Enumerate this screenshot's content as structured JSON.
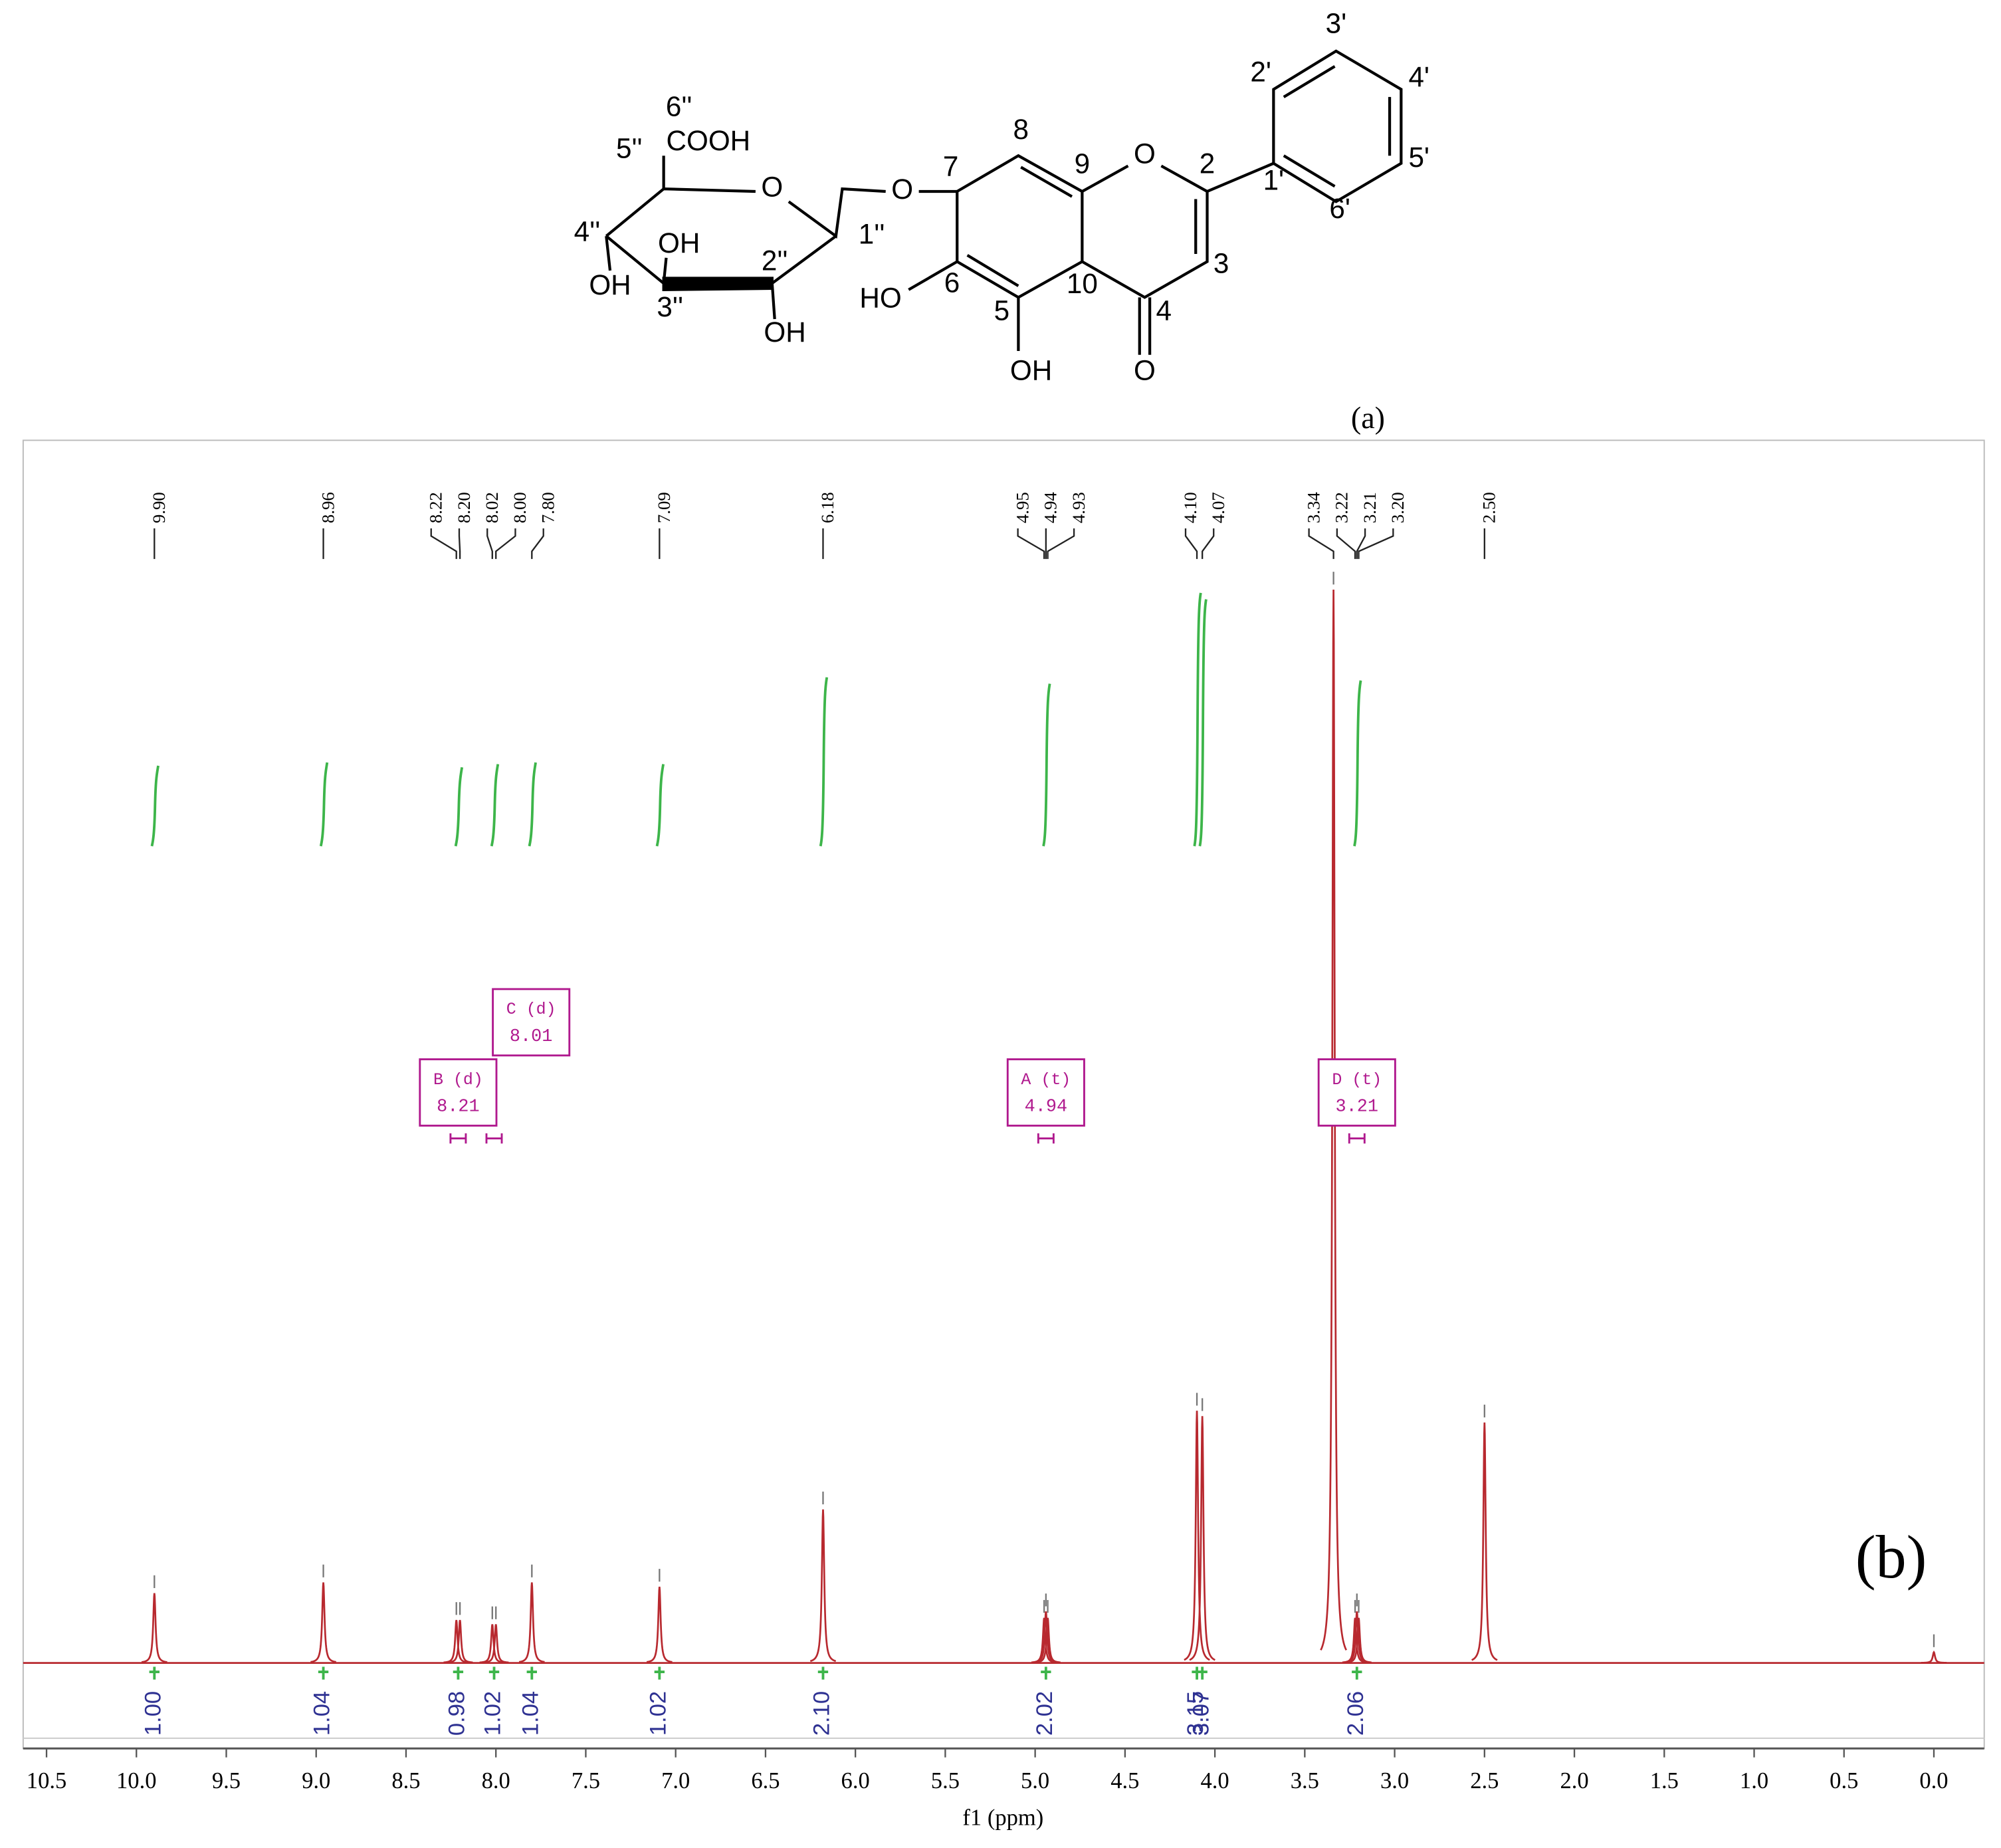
{
  "structure": {
    "labels": [
      "3'",
      "2'",
      "4'",
      "5'",
      "1'",
      "6'",
      "8",
      "9",
      "2",
      "O",
      "7",
      "O",
      "HO",
      "6",
      "10",
      "3",
      "5",
      "4",
      "OH",
      "O",
      "6''",
      "COOH",
      "5''",
      "O",
      "1''",
      "4''",
      "OH",
      "OH",
      "3''",
      "2''",
      "OH"
    ],
    "caption": "(a)"
  },
  "chart_data": {
    "type": "nmr",
    "xlabel": "f1 (ppm)",
    "panel_label": "(b)",
    "xlim": [
      10.63,
      -0.28
    ],
    "xticks": [
      10.5,
      {
        "value": 10,
        "label": "10.0"
      },
      9.5,
      {
        "value": 9,
        "label": "9.0"
      },
      8.5,
      {
        "value": 8,
        "label": "8.0"
      },
      7.5,
      {
        "value": 7,
        "label": "7.0"
      },
      6.5,
      {
        "value": 6,
        "label": "6.0"
      },
      5.5,
      {
        "value": 5,
        "label": "5.0"
      },
      4.5,
      {
        "value": 4,
        "label": "4.0"
      },
      3.5,
      {
        "value": 3,
        "label": "3.0"
      },
      2.5,
      {
        "value": 2,
        "label": "2.0"
      },
      1.5,
      {
        "value": 1,
        "label": "1.0"
      },
      0.5,
      {
        "value": 0,
        "label": "0.0"
      }
    ],
    "spectrum_color": "#b8292f",
    "integral_color": "#3db54a",
    "integral_label_color": "#2e3192",
    "multiplet_color": "#b0198e",
    "peaks": [
      {
        "ppm": 9.9,
        "label": "9.90",
        "height": 6.5
      },
      {
        "ppm": 8.96,
        "label": "8.96",
        "height": 7.5
      },
      {
        "ppm": 8.22,
        "label": "8.22",
        "height": 4
      },
      {
        "ppm": 8.2,
        "label": "8.20",
        "height": 4
      },
      {
        "ppm": 8.02,
        "label": "8.02",
        "height": 3.6
      },
      {
        "ppm": 8,
        "label": "8.00",
        "height": 3.6
      },
      {
        "ppm": 7.8,
        "label": "7.80",
        "height": 7.5
      },
      {
        "ppm": 7.09,
        "label": "7.09",
        "height": 7.1
      },
      {
        "ppm": 6.18,
        "label": "6.18",
        "height": 14.3
      },
      {
        "ppm": 4.95,
        "label": "4.95",
        "height": 4.2
      },
      {
        "ppm": 4.94,
        "label": "4.94",
        "height": 4.8
      },
      {
        "ppm": 4.93,
        "label": "4.93",
        "height": 4.2
      },
      {
        "ppm": 4.1,
        "label": "4.10",
        "height": 23.5
      },
      {
        "ppm": 4.07,
        "label": "4.07",
        "height": 23
      },
      {
        "ppm": 3.34,
        "label": "3.34",
        "height": 100
      },
      {
        "ppm": 3.22,
        "label": "3.22",
        "height": 4.2
      },
      {
        "ppm": 3.21,
        "label": "3.21",
        "height": 4.8
      },
      {
        "ppm": 3.2,
        "label": "3.20",
        "height": 4.2
      },
      {
        "ppm": 2.5,
        "label": "2.50",
        "height": 22.4
      },
      {
        "ppm": 0,
        "height": 1
      }
    ],
    "integrals": [
      {
        "ppm": 9.9,
        "value": 1,
        "label": "1.00"
      },
      {
        "ppm": 8.96,
        "value": 1.04,
        "label": "1.04"
      },
      {
        "ppm": 8.21,
        "value": 0.98,
        "label": "0.98"
      },
      {
        "ppm": 8.01,
        "value": 1.02,
        "label": "1.02"
      },
      {
        "ppm": 7.8,
        "value": 1.04,
        "label": "1.04"
      },
      {
        "ppm": 7.09,
        "value": 1.02,
        "label": "1.02"
      },
      {
        "ppm": 6.18,
        "value": 2.1,
        "label": "2.10"
      },
      {
        "ppm": 4.94,
        "value": 2.02,
        "label": "2.02"
      },
      {
        "ppm": 4.1,
        "value": 3.15,
        "label": "3.15"
      },
      {
        "ppm": 4.07,
        "value": 3.07,
        "label": "3.07"
      },
      {
        "ppm": 3.21,
        "value": 2.06,
        "label": "2.06"
      }
    ],
    "multiplets": [
      {
        "name": "B (d)",
        "ppm": 8.21,
        "label": "8.21"
      },
      {
        "name": "C (d)",
        "ppm": 8.01,
        "label": "8.01"
      },
      {
        "name": "A (t)",
        "ppm": 4.94,
        "label": "4.94"
      },
      {
        "name": "D (t)",
        "ppm": 3.21,
        "label": "3.21"
      }
    ]
  }
}
